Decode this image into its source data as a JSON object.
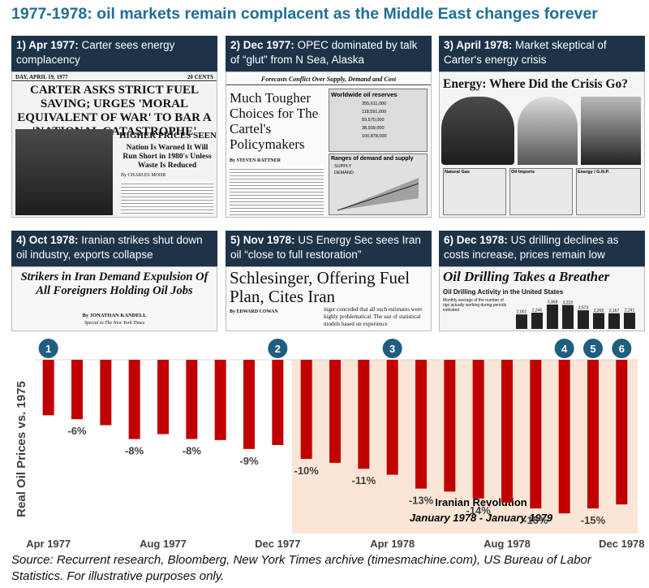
{
  "title": "1977-1978: oil markets remain complacent as the Middle East changes forever",
  "panels": [
    {
      "head_bold": "1) Apr 1977:",
      "head_rest": " Carter sees energy complacency",
      "np_date": "DAY, APRIL 19, 1977",
      "np_price": "20 CENTS",
      "headline": "CARTER ASKS STRICT FUEL SAVING; URGES 'MORAL EQUIVALENT OF WAR' TO BAR A 'NATIONAL CATASTROPHE'",
      "sub1": "HIGHER PRICES SEEN",
      "sub2": "Nation Is Warned It Will Run Short in 1980's Unless Waste Is Reduced",
      "byline": "By CHARLES MOHR"
    },
    {
      "head_bold": "2) Dec 1977:",
      "head_rest": " OPEC dominated by talk of “glut” from N Sea, Alaska",
      "kicker": "Forecasts Conflict Over Supply, Demand and Cost",
      "headline": "Much Tougher Choices for The Cartel's Policymakers",
      "box1": "Worldwide oil reserves",
      "box2": "Ranges of demand and supply",
      "byline": "By STEVEN RATTNER",
      "reserves": [
        "355,611,000",
        "118,591,000",
        "59,570,000",
        "38,939,000",
        "100,878,000"
      ],
      "legend": [
        "SUPPLY",
        "DEMAND"
      ]
    },
    {
      "head_bold": "3) April 1978:",
      "head_rest": " Market skeptical of Carter's energy crisis",
      "headline": "Energy: Where Did the Crisis Go?",
      "mini": [
        "Natural Gas",
        "Oil Imports",
        "Energy / G.N.P."
      ]
    },
    {
      "head_bold": "4) Oct 1978:",
      "head_rest": " Iranian strikes shut down oil industry, exports collapse",
      "headline": "Strikers in Iran Demand Expulsion Of All Foreigners Holding Oil Jobs",
      "byline": "By JONATHAN KANDELL",
      "byline2": "Special to The New York Times"
    },
    {
      "head_bold": "5) Nov 1978:",
      "head_rest": " US Energy Sec sees Iran oil “close to full restoration”",
      "headline": "Schlesinger, Offering Fuel Plan, Cites Iran",
      "byline": "By EDWARD COWAN",
      "snippet": "inger conceded that all such estimates were highly problematical. The use of statistical models based on experience"
    },
    {
      "head_bold": "6) Dec 1978:",
      "head_rest": " US drilling declines as costs increase, prices remain low",
      "headline": "Oil Drilling Takes a Breather",
      "sub": "Oil Drilling Activity in the United States",
      "sub2": "Monthly average of the number of rigs actually working during periods indicated",
      "rigs": [
        "2,001",
        "2,246",
        "3,368",
        "3,315",
        "2,573",
        "2,200",
        "2,167",
        "2,241"
      ]
    }
  ],
  "chart_data": {
    "type": "bar",
    "ylabel": "Real Oil Prices vs. 1975",
    "categories": [
      "Apr 1977",
      "May 1977",
      "Jun 1977",
      "Jul 1977",
      "Aug 1977",
      "Sep 1977",
      "Oct 1977",
      "Nov 1977",
      "Dec 1977",
      "Jan 1978",
      "Feb 1978",
      "Mar 1978",
      "Apr 1978",
      "May 1978",
      "Jun 1978",
      "Jul 1978",
      "Aug 1978",
      "Sep 1978",
      "Oct 1978",
      "Nov 1978",
      "Dec 1978"
    ],
    "values": [
      -5.6,
      -6.0,
      -6.6,
      -8.0,
      -7.5,
      -8.0,
      -8.1,
      -9.0,
      -8.6,
      -10.0,
      -10.4,
      -11.0,
      -11.6,
      -13.0,
      -13.3,
      -14.0,
      -14.4,
      -15.0,
      -15.5,
      -15.0,
      -14.6
    ],
    "data_labels": {
      "1": "-6%",
      "3": "-8%",
      "5": "-8%",
      "7": "-9%",
      "9": "-10%",
      "11": "-11%",
      "13": "-13%",
      "15": "-14%",
      "17": "-15%",
      "19": "-15%"
    },
    "x_tick_labels": {
      "0": "Apr 1977",
      "4": "Aug 1977",
      "8": "Dec 1977",
      "12": "Apr 1978",
      "16": "Aug 1978",
      "20": "Dec 1978"
    },
    "markers": [
      {
        "index": 0,
        "label": "1"
      },
      {
        "index": 8,
        "label": "2"
      },
      {
        "index": 12,
        "label": "3"
      },
      {
        "index": 18,
        "label": "4"
      },
      {
        "index": 19,
        "label": "5"
      },
      {
        "index": 20,
        "label": "6"
      }
    ],
    "shaded_region": {
      "from_index": 9,
      "to_index": 20,
      "label": "Iranian Revolution",
      "sublabel": "January 1978 - January 1979"
    },
    "ylim": [
      -17.5,
      0
    ],
    "grid": false,
    "colors": {
      "bar": "#c00000",
      "shade": "#fbe5d6",
      "marker": "#1f5e7f",
      "label": "#404040"
    }
  },
  "source": "Source: Recurrent research, Bloomberg, New York Times archive (timesmachine.com), US Bureau of Labor Statistics. For illustrative purposes only."
}
